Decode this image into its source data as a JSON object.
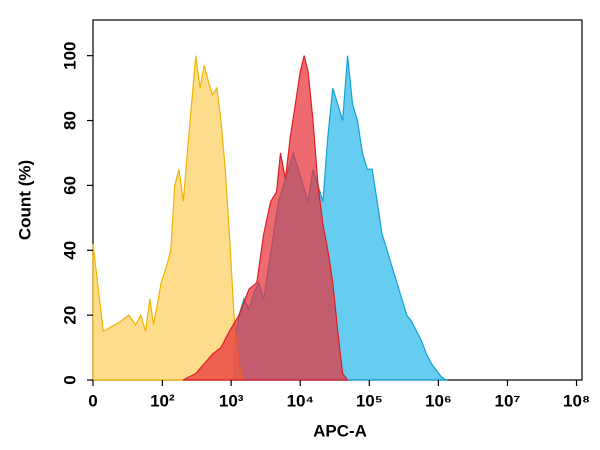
{
  "chart_data": {
    "type": "area",
    "x_label": "APC-A",
    "y_label": "Count (%)",
    "xscale": "biexponential",
    "xlim": [
      0,
      120000000
    ],
    "ylim": [
      0,
      111
    ],
    "xticks": [
      0,
      {
        "value": 100,
        "label": "10²"
      },
      {
        "value": 1000,
        "label": "10³"
      },
      {
        "value": 10000,
        "label": "10⁴"
      },
      {
        "value": 100000,
        "label": "10⁵"
      },
      {
        "value": 1000000,
        "label": "10⁶"
      },
      {
        "value": 10000000,
        "label": "10⁷"
      },
      {
        "value": 100000000,
        "label": "10⁸"
      }
    ],
    "yticks": [
      0,
      20,
      40,
      60,
      80,
      100
    ],
    "series": [
      {
        "color": "#2bb8ea",
        "stroke": "#14a3d6",
        "x": [
          1100,
          1300,
          1530,
          1810,
          2130,
          2510,
          2960,
          3490,
          4110,
          4850,
          5720,
          6740,
          7940,
          9360,
          11000,
          13000,
          15300,
          18100,
          21300,
          25100,
          29600,
          34900,
          41100,
          48500,
          57200,
          67400,
          79400,
          93600,
          110000,
          130000,
          153000,
          181000,
          213000,
          251000,
          296000,
          349000,
          411000,
          485000,
          572000,
          674000,
          794000,
          936000,
          1100000,
          1300000
        ],
        "values": [
          10,
          20,
          25,
          22,
          27,
          30,
          25,
          35,
          45,
          55,
          60,
          65,
          70,
          65,
          60,
          55,
          65,
          60,
          55,
          75,
          90,
          85,
          80,
          100,
          85,
          80,
          70,
          65,
          65,
          55,
          45,
          40,
          35,
          30,
          25,
          20,
          18,
          15,
          12,
          8,
          5,
          3,
          1,
          0
        ]
      },
      {
        "color": "#fcd060",
        "stroke": "#f0b400",
        "x": [
          0,
          7,
          21,
          30,
          39,
          47,
          56,
          65,
          74,
          82,
          96,
          115,
          133,
          152,
          175,
          202,
          232,
          267,
          307,
          354,
          407,
          468,
          538,
          620,
          712,
          820,
          943,
          1100,
          1300,
          1550
        ],
        "values": [
          42,
          15,
          18,
          20,
          17,
          20,
          15,
          25,
          17,
          22,
          30,
          35,
          40,
          60,
          65,
          55,
          70,
          85,
          100,
          90,
          97,
          92,
          88,
          90,
          80,
          65,
          45,
          20,
          5,
          0
        ]
      },
      {
        "color": "#e8303a",
        "stroke": "#e01c24",
        "x": [
          200,
          307,
          407,
          538,
          712,
          943,
          1300,
          1810,
          2350,
          2960,
          3730,
          4540,
          5180,
          6100,
          7200,
          8490,
          10000,
          11400,
          13000,
          15300,
          18100,
          21300,
          25100,
          29600,
          34900,
          41100,
          48500
        ],
        "values": [
          0,
          2,
          5,
          8,
          10,
          15,
          20,
          28,
          30,
          45,
          55,
          58,
          70,
          62,
          75,
          85,
          95,
          100,
          95,
          80,
          60,
          48,
          40,
          30,
          15,
          2,
          0
        ]
      }
    ]
  }
}
